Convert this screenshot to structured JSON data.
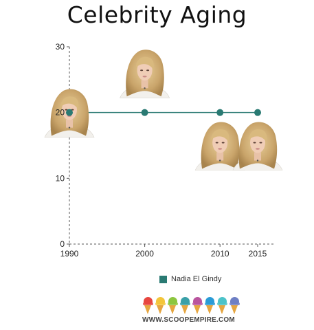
{
  "chart_data": {
    "type": "line",
    "title": "Celebrity Aging",
    "xlabel": "",
    "ylabel": "",
    "x": [
      1990,
      2000,
      2010,
      2015
    ],
    "xlim": [
      1990,
      2015
    ],
    "ylim": [
      0,
      30
    ],
    "x_ticks": [
      "1990",
      "2000",
      "2010",
      "2015"
    ],
    "y_ticks": [
      "0",
      "10",
      "20",
      "30"
    ],
    "grid": false,
    "legend_position": "bottom",
    "series": [
      {
        "name": "Nadia El Gindy",
        "values": [
          20,
          20,
          20,
          20
        ],
        "color": "#2a7a73"
      }
    ],
    "annotations": [
      {
        "type": "portrait-photo",
        "x": 1990,
        "y": 20
      },
      {
        "type": "portrait-photo",
        "x": 2000,
        "y": 26
      },
      {
        "type": "portrait-photo",
        "x": 2010,
        "y": 15
      },
      {
        "type": "portrait-photo",
        "x": 2015,
        "y": 15
      }
    ]
  },
  "logo": {
    "text": "WWW.SCOOPEMPIRE.COM",
    "scoop_colors": [
      "#e7463f",
      "#f3c53a",
      "#8cc63f",
      "#3aa0a8",
      "#b9549e",
      "#2a9bd6",
      "#4cc3c9",
      "#6e7fc4"
    ]
  }
}
